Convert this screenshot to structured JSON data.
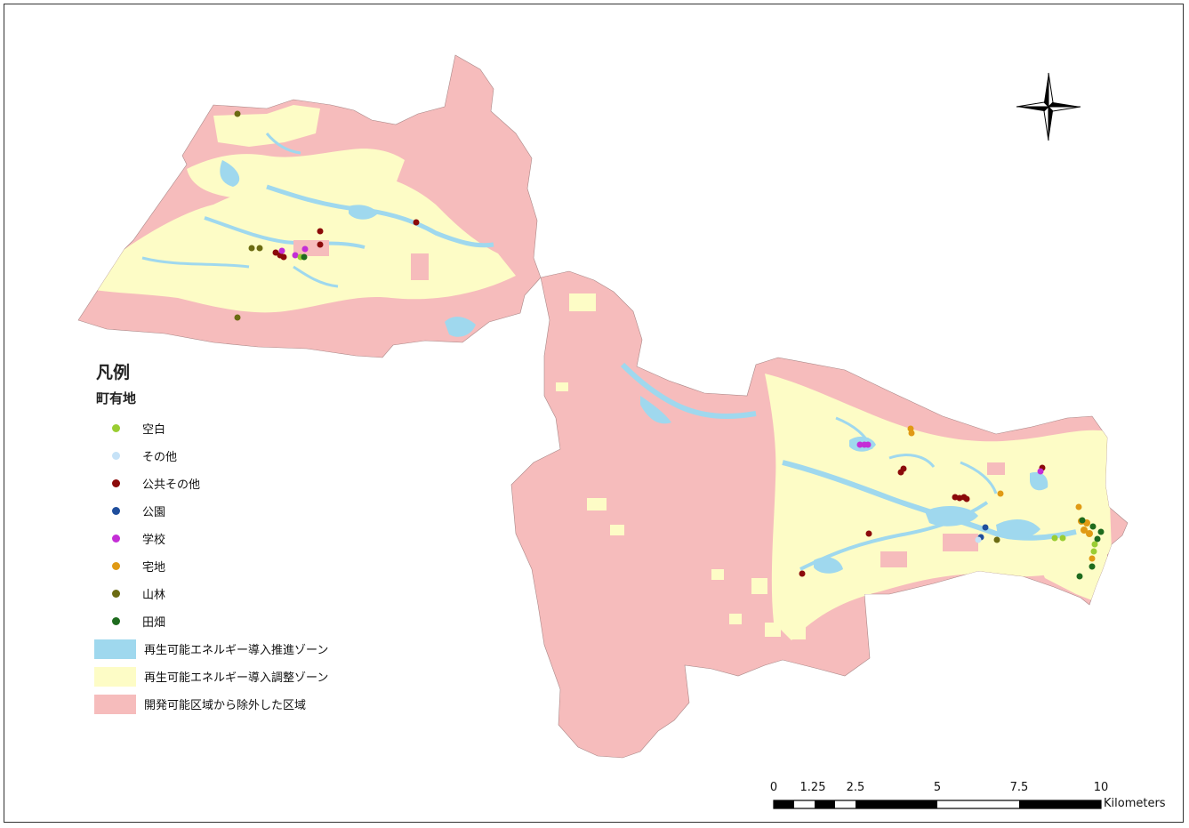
{
  "legend": {
    "title": "凡例",
    "subtitle": "町有地",
    "points": [
      {
        "label": "空白",
        "color": "#9acd32"
      },
      {
        "label": "その他",
        "color": "#c6e2f7"
      },
      {
        "label": "公共その他",
        "color": "#8b0a0a"
      },
      {
        "label": "公園",
        "color": "#1f4e9c"
      },
      {
        "label": "学校",
        "color": "#c42ed6"
      },
      {
        "label": "宅地",
        "color": "#e09a14"
      },
      {
        "label": "山林",
        "color": "#6b6b12"
      },
      {
        "label": "田畑",
        "color": "#1e6b1e"
      }
    ],
    "zones": [
      {
        "label": "再生可能エネルギー導入推進ゾーン",
        "color": "#9fd8ee"
      },
      {
        "label": "再生可能エネルギー導入調整ゾーン",
        "color": "#fdfcc6"
      },
      {
        "label": "開発可能区域から除外した区域",
        "color": "#f6bcbc"
      }
    ]
  },
  "scale_bar": {
    "ticks": [
      "0",
      "1.25",
      "2.5",
      "5",
      "7.5",
      "10"
    ],
    "unit": "Kilometers"
  },
  "north_arrow": {
    "icon": "north-arrow-icon"
  },
  "colors": {
    "excluded": "#f6bcbc",
    "adjust": "#fdfcc6",
    "promote": "#9fd8ee"
  }
}
